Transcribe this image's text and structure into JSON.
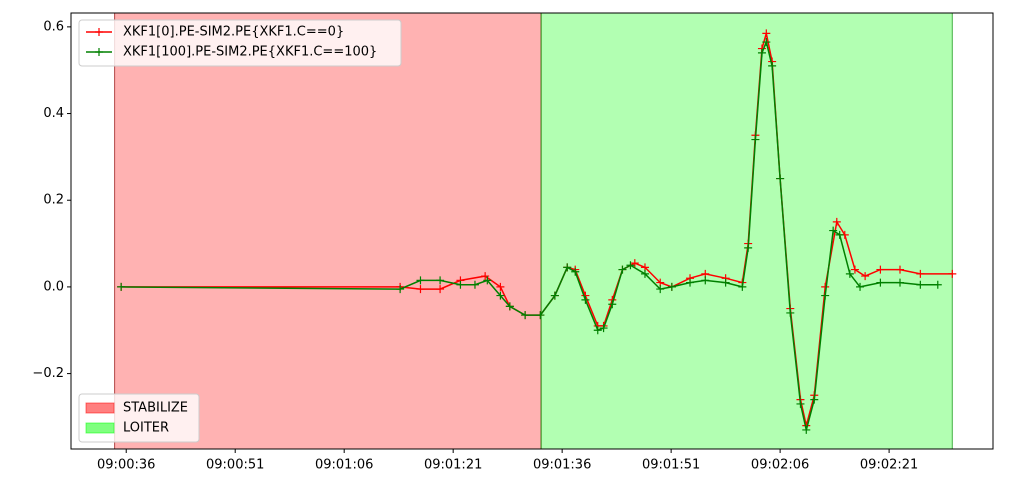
{
  "chart_data": {
    "type": "line",
    "xlim": [
      32428.4,
      32555.3
    ],
    "ylim": [
      -0.374,
      0.632
    ],
    "xticks": [
      {
        "value": 32436,
        "label": "09:00:36"
      },
      {
        "value": 32451,
        "label": "09:00:51"
      },
      {
        "value": 32466,
        "label": "09:01:06"
      },
      {
        "value": 32481,
        "label": "09:01:21"
      },
      {
        "value": 32496,
        "label": "09:01:36"
      },
      {
        "value": 32511,
        "label": "09:01:51"
      },
      {
        "value": 32526,
        "label": "09:02:06"
      },
      {
        "value": 32541,
        "label": "09:02:21"
      }
    ],
    "yticks": [
      {
        "value": -0.2,
        "label": "−0.2"
      },
      {
        "value": 0,
        "label": "0.0"
      },
      0.2,
      0.4,
      0.6
    ],
    "grid": false,
    "legend": "upper left",
    "region_legend": "lower left",
    "regions": [
      {
        "name": "STABILIZE",
        "color": "#ff0000",
        "start": 32434.4,
        "end": 32493.1
      },
      {
        "name": "LOITER",
        "color": "#00ff00",
        "start": 32493.1,
        "end": 32549.7
      }
    ],
    "series": [
      {
        "name": "XKF1[0].PE-SIM2.PE{XKF1.C==0}",
        "color": "#ff0000",
        "x": [
          32435.3,
          32473.7,
          32476.5,
          32479.2,
          32482.0,
          32485.4,
          32487.5,
          32488.8,
          32490.9,
          32493.0,
          32495.0,
          32496.7,
          32497.8,
          32499.2,
          32500.9,
          32501.7,
          32502.9,
          32504.3,
          32506.0,
          32507.4,
          32509.5,
          32511.1,
          32513.6,
          32515.7,
          32518.5,
          32520.8,
          32521.6,
          32522.6,
          32523.5,
          32524.1,
          32524.9,
          32526.0,
          32527.4,
          32528.8,
          32529.6,
          32530.7,
          32532.2,
          32533.8,
          32534.9,
          32536.3,
          32537.7,
          32539.8,
          32542.5,
          32545.3,
          32549.7
        ],
        "values": [
          0,
          0,
          -0.005,
          -0.005,
          0.015,
          0.025,
          0.0,
          -0.045,
          -0.065,
          -0.065,
          -0.02,
          0.045,
          0.04,
          -0.02,
          -0.09,
          -0.09,
          -0.03,
          0.04,
          0.055,
          0.045,
          0.01,
          0.0,
          0.02,
          0.03,
          0.02,
          0.01,
          0.1,
          0.35,
          0.55,
          0.585,
          0.52,
          0.25,
          -0.05,
          -0.26,
          -0.32,
          -0.25,
          0.0,
          0.15,
          0.12,
          0.04,
          0.025,
          0.04,
          0.04,
          0.03,
          0.03
        ]
      },
      {
        "name": "XKF1[100].PE-SIM2.PE{XKF1.C==100}",
        "color": "#008000",
        "x": [
          32435.3,
          32473.7,
          32476.5,
          32479.2,
          32482.0,
          32484.0,
          32485.7,
          32487.5,
          32488.8,
          32490.9,
          32493.0,
          32495.0,
          32496.7,
          32497.8,
          32499.2,
          32500.9,
          32501.7,
          32502.9,
          32504.3,
          32505.4,
          32507.4,
          32509.5,
          32511.1,
          32513.6,
          32515.7,
          32518.5,
          32520.8,
          32521.6,
          32522.6,
          32523.5,
          32524.1,
          32524.9,
          32526.0,
          32527.4,
          32528.8,
          32529.6,
          32530.7,
          32532.2,
          32533.3,
          32534.2,
          32535.6,
          32537.0,
          32539.8,
          32542.5,
          32545.3,
          32547.7
        ],
        "values": [
          0,
          -0.005,
          0.015,
          0.015,
          0.005,
          0.005,
          0.015,
          -0.02,
          -0.045,
          -0.065,
          -0.065,
          -0.02,
          0.045,
          0.035,
          -0.03,
          -0.1,
          -0.095,
          -0.04,
          0.04,
          0.05,
          0.03,
          -0.005,
          0.0,
          0.01,
          0.015,
          0.01,
          0.0,
          0.09,
          0.34,
          0.54,
          0.565,
          0.51,
          0.25,
          -0.06,
          -0.27,
          -0.33,
          -0.26,
          -0.02,
          0.13,
          0.12,
          0.03,
          0.0,
          0.01,
          0.01,
          0.005,
          0.005
        ]
      }
    ]
  }
}
